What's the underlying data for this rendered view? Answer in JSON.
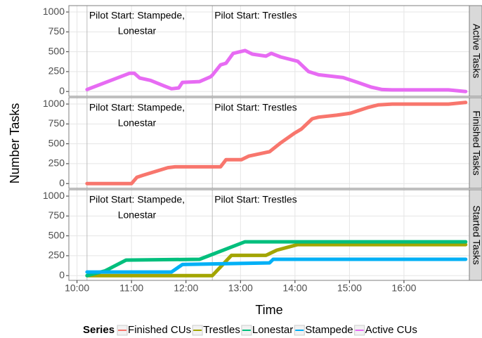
{
  "chart_data": {
    "type": "line",
    "x_label": "Time",
    "y_label": "Number Tasks",
    "legend_title": "Series",
    "panels": [
      "Active Tasks",
      "Finished Tasks",
      "Started Tasks"
    ],
    "xlim": [
      "09:51",
      "17:12"
    ],
    "xticks": [
      "10:00",
      "11:00",
      "12:00",
      "13:00",
      "14:00",
      "15:00",
      "16:00"
    ],
    "ylim": [
      -60,
      1080
    ],
    "yticks": [
      0,
      250,
      500,
      750,
      1000
    ],
    "grid": true,
    "annotations": [
      {
        "x": "10:11",
        "lines": [
          "Pilot Start: Stampede,",
          "Lonestar"
        ]
      },
      {
        "x": "12:29",
        "lines": [
          "Pilot Start: Trestles"
        ]
      }
    ],
    "series": [
      {
        "name": "Finished CUs",
        "color": "#F8766D",
        "facet": "Finished Tasks",
        "x": [
          "10:11",
          "11:00",
          "11:06",
          "11:13",
          "11:40",
          "11:48",
          "12:38",
          "12:44",
          "13:01",
          "13:09",
          "13:32",
          "13:44",
          "13:59",
          "14:07",
          "14:19",
          "14:26",
          "14:46",
          "15:01",
          "15:20",
          "15:32",
          "15:47",
          "16:49",
          "17:08"
        ],
        "values": [
          0,
          0,
          80,
          105,
          200,
          210,
          210,
          300,
          300,
          345,
          400,
          510,
          630,
          685,
          815,
          835,
          860,
          885,
          955,
          990,
          1000,
          1000,
          1020
        ]
      },
      {
        "name": "Trestles",
        "color": "#A3A500",
        "facet": "Started Tasks",
        "x": [
          "10:11",
          "12:29",
          "12:50",
          "13:28",
          "13:40",
          "14:03",
          "17:08"
        ],
        "values": [
          0,
          0,
          255,
          255,
          320,
          390,
          390
        ]
      },
      {
        "name": "Lonestar",
        "color": "#00BF7D",
        "facet": "Started Tasks",
        "x": [
          "10:11",
          "10:31",
          "10:54",
          "12:15",
          "13:05",
          "17:08"
        ],
        "values": [
          0,
          60,
          195,
          205,
          425,
          425
        ]
      },
      {
        "name": "Stampede",
        "color": "#00B0F6",
        "facet": "Started Tasks",
        "x": [
          "10:11",
          "11:44",
          "11:56",
          "13:32",
          "13:36",
          "17:08"
        ],
        "values": [
          45,
          45,
          140,
          160,
          205,
          205
        ]
      },
      {
        "name": "Active CUs",
        "color": "#E76BF3",
        "facet": "Active Tasks",
        "x": [
          "10:11",
          "10:58",
          "11:03",
          "11:09",
          "11:21",
          "11:36",
          "11:44",
          "11:52",
          "11:56",
          "12:15",
          "12:27",
          "12:29",
          "12:38",
          "12:44",
          "12:52",
          "13:05",
          "13:13",
          "13:28",
          "13:34",
          "13:44",
          "14:03",
          "14:15",
          "14:26",
          "14:53",
          "15:09",
          "15:24",
          "15:36",
          "15:47",
          "16:49",
          "17:08"
        ],
        "values": [
          25,
          230,
          230,
          170,
          140,
          70,
          35,
          45,
          115,
          125,
          185,
          205,
          335,
          355,
          480,
          515,
          470,
          445,
          480,
          435,
          380,
          250,
          210,
          175,
          115,
          55,
          25,
          20,
          20,
          0
        ]
      }
    ]
  }
}
